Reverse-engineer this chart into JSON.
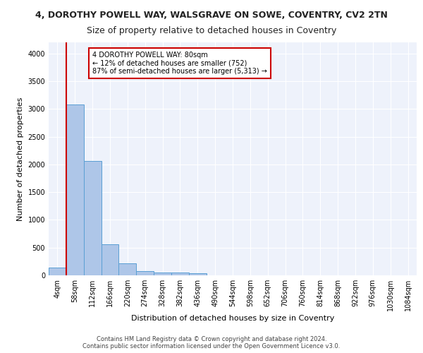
{
  "title_line1": "4, DOROTHY POWELL WAY, WALSGRAVE ON SOWE, COVENTRY, CV2 2TN",
  "title_line2": "Size of property relative to detached houses in Coventry",
  "xlabel": "Distribution of detached houses by size in Coventry",
  "ylabel": "Number of detached properties",
  "bin_labels": [
    "4sqm",
    "58sqm",
    "112sqm",
    "166sqm",
    "220sqm",
    "274sqm",
    "328sqm",
    "382sqm",
    "436sqm",
    "490sqm",
    "544sqm",
    "598sqm",
    "652sqm",
    "706sqm",
    "760sqm",
    "814sqm",
    "868sqm",
    "922sqm",
    "976sqm",
    "1030sqm",
    "1084sqm"
  ],
  "bar_heights": [
    140,
    3080,
    2060,
    560,
    215,
    75,
    55,
    45,
    40,
    0,
    0,
    0,
    0,
    0,
    0,
    0,
    0,
    0,
    0,
    0,
    0
  ],
  "bar_color": "#aec6e8",
  "bar_edge_color": "#5a9fd4",
  "background_color": "#eef2fb",
  "grid_color": "#ffffff",
  "annotation_line1": "4 DOROTHY POWELL WAY: 80sqm",
  "annotation_line2": "← 12% of detached houses are smaller (752)",
  "annotation_line3": "87% of semi-detached houses are larger (5,313) →",
  "vline_color": "#cc0000",
  "annotation_box_color": "#ffffff",
  "annotation_box_edge": "#cc0000",
  "ylim": [
    0,
    4200
  ],
  "yticks": [
    0,
    500,
    1000,
    1500,
    2000,
    2500,
    3000,
    3500,
    4000
  ],
  "footer_text": "Contains HM Land Registry data © Crown copyright and database right 2024.\nContains public sector information licensed under the Open Government Licence v3.0.",
  "title_fontsize": 9,
  "subtitle_fontsize": 9,
  "tick_fontsize": 7,
  "ylabel_fontsize": 8,
  "xlabel_fontsize": 8,
  "annot_fontsize": 7,
  "footer_fontsize": 6
}
